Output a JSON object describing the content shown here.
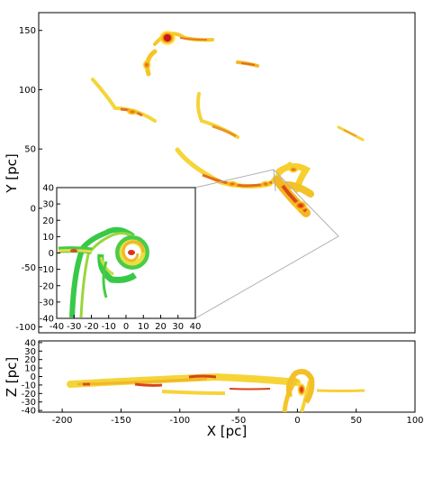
{
  "chart_data": [
    {
      "panel": "main-xy",
      "type": "heatmap",
      "ylabel": "Y [pc]",
      "xlim": [
        -220,
        100
      ],
      "ylim": [
        -105,
        165
      ],
      "yticks": [
        "150",
        "100",
        "50",
        "0",
        "-50",
        "-100"
      ],
      "grid": false,
      "features": [
        {
          "x": -115,
          "y": 147,
          "note": "bright clump"
        },
        {
          "x": -125,
          "y": 121
        },
        {
          "x": -145,
          "y": 84
        },
        {
          "x": -95,
          "y": 77
        },
        {
          "x": -55,
          "y": 125
        },
        {
          "x": 10,
          "y": 70
        },
        {
          "x": -85,
          "y": 40
        },
        {
          "x": -30,
          "y": 22
        },
        {
          "x": 0,
          "y": 20
        },
        {
          "x": 0,
          "y": 5,
          "note": "dense core"
        }
      ]
    },
    {
      "panel": "inset-zoom",
      "type": "heatmap",
      "xlim": [
        -40,
        40
      ],
      "ylim": [
        -40,
        40
      ],
      "xticks": [
        "-40",
        "-30",
        "-20",
        "-10",
        "0",
        "10",
        "20",
        "30",
        "40"
      ],
      "yticks": [
        "40",
        "30",
        "20",
        "10",
        "0",
        "-10",
        "-20",
        "-30",
        "-40"
      ],
      "features": [
        {
          "x": 0,
          "y": 0,
          "note": "spiral core"
        },
        {
          "x": -30,
          "y": 0
        },
        {
          "x": -15,
          "y": -25
        }
      ]
    },
    {
      "panel": "lower-xz",
      "type": "heatmap",
      "xlabel": "X [pc]",
      "ylabel": "Z [pc]",
      "xlim": [
        -220,
        100
      ],
      "ylim": [
        -42,
        42
      ],
      "xticks": [
        "-200",
        "-150",
        "-100",
        "-50",
        "0",
        "50",
        "100"
      ],
      "yticks": [
        "40",
        "30",
        "20",
        "10",
        "0",
        "-10",
        "-20",
        "-30",
        "-40"
      ],
      "features": [
        {
          "x": -190,
          "y": 3
        },
        {
          "x": -140,
          "y": 3
        },
        {
          "x": -85,
          "y": 10
        },
        {
          "x": -30,
          "y": 2
        },
        {
          "x": 0,
          "y": 0,
          "note": "bright core"
        },
        {
          "x": 40,
          "y": 0
        }
      ]
    }
  ]
}
